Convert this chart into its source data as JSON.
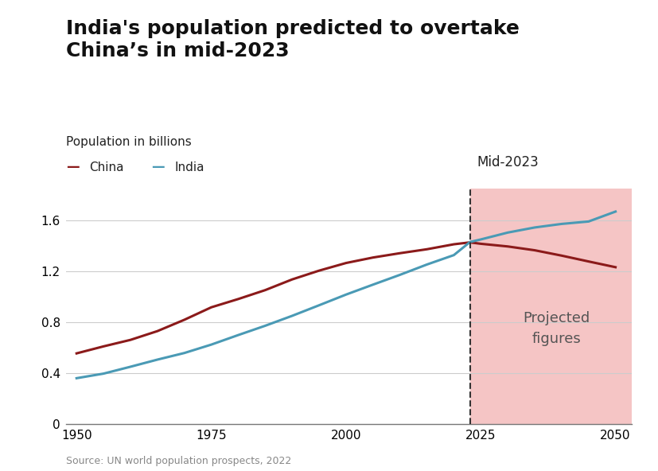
{
  "title": "India's population predicted to overtake\nChina’s in mid-2023",
  "subtitle": "Population in billions",
  "china_years": [
    1950,
    1955,
    1960,
    1965,
    1970,
    1975,
    1980,
    1985,
    1990,
    1995,
    2000,
    2005,
    2010,
    2015,
    2020,
    2023,
    2025,
    2030,
    2035,
    2040,
    2045,
    2050
  ],
  "china_pop": [
    0.554,
    0.609,
    0.66,
    0.729,
    0.818,
    0.916,
    0.981,
    1.051,
    1.135,
    1.204,
    1.264,
    1.307,
    1.341,
    1.372,
    1.411,
    1.426,
    1.415,
    1.394,
    1.364,
    1.322,
    1.276,
    1.231
  ],
  "india_years": [
    1950,
    1955,
    1960,
    1965,
    1970,
    1975,
    1980,
    1985,
    1990,
    1995,
    2000,
    2005,
    2010,
    2015,
    2020,
    2023,
    2025,
    2030,
    2035,
    2040,
    2045,
    2050
  ],
  "india_pop": [
    0.359,
    0.395,
    0.449,
    0.505,
    0.557,
    0.623,
    0.698,
    0.771,
    0.849,
    0.932,
    1.016,
    1.094,
    1.171,
    1.252,
    1.326,
    1.429,
    1.449,
    1.503,
    1.543,
    1.571,
    1.59,
    1.668
  ],
  "china_color": "#8b1a1a",
  "india_color": "#4a9ab5",
  "projection_start": 2023,
  "projection_color": "#f5c5c5",
  "dashed_line_color": "#333333",
  "xlim": [
    1948,
    2053
  ],
  "ylim": [
    0,
    1.85
  ],
  "yticks": [
    0,
    0.4,
    0.8,
    1.2,
    1.6
  ],
  "xticks": [
    1950,
    1975,
    2000,
    2025,
    2050
  ],
  "grid_color": "#cccccc",
  "background_color": "#ffffff",
  "source_text": "Source: UN world population prospects, 2022",
  "mid2023_label": "Mid-2023",
  "projected_label": "Projected\nfigures",
  "legend_china": "China",
  "legend_india": "India",
  "title_fontsize": 18,
  "subtitle_fontsize": 11,
  "axis_fontsize": 11,
  "legend_fontsize": 11,
  "annotation_fontsize": 12,
  "line_width": 2.2
}
